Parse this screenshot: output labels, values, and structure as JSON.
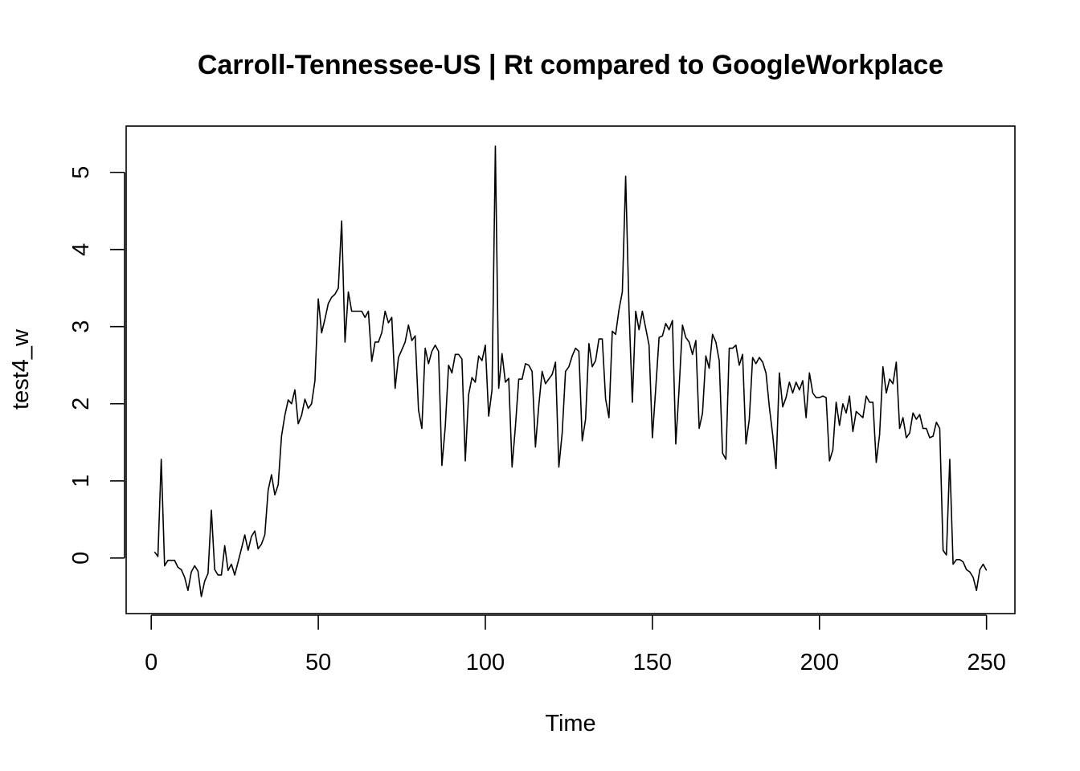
{
  "chart_data": {
    "type": "line",
    "title": "Carroll-Tennessee-US | Rt compared to GoogleWorkplace",
    "xlabel": "Time",
    "ylabel": "test4_w",
    "xlim": [
      -7.5,
      258.5
    ],
    "ylim": [
      -0.72,
      5.6
    ],
    "xticks": [
      0,
      50,
      100,
      150,
      200,
      250
    ],
    "yticks": [
      0,
      1,
      2,
      3,
      4,
      5
    ],
    "grid": false,
    "legend": "none",
    "line_color": "#000000",
    "series": [
      {
        "x_start": 1,
        "values": [
          0.08,
          0.02,
          1.28,
          -0.1,
          -0.03,
          -0.03,
          -0.03,
          -0.12,
          -0.15,
          -0.25,
          -0.42,
          -0.18,
          -0.1,
          -0.17,
          -0.5,
          -0.3,
          -0.2,
          0.62,
          -0.15,
          -0.22,
          -0.22,
          0.16,
          -0.16,
          -0.08,
          -0.22,
          -0.05,
          0.12,
          0.3,
          0.1,
          0.28,
          0.35,
          0.12,
          0.18,
          0.3,
          0.88,
          1.08,
          0.82,
          0.95,
          1.58,
          1.85,
          2.05,
          2.0,
          2.18,
          1.74,
          1.85,
          2.06,
          1.94,
          2.0,
          2.3,
          3.36,
          2.92,
          3.1,
          3.3,
          3.38,
          3.42,
          3.5,
          4.37,
          2.8,
          3.45,
          3.2,
          3.2,
          3.2,
          3.2,
          3.12,
          3.2,
          2.55,
          2.8,
          2.8,
          2.92,
          3.2,
          3.05,
          3.12,
          2.2,
          2.6,
          2.7,
          2.8,
          3.02,
          2.82,
          2.88,
          1.92,
          1.68,
          2.72,
          2.52,
          2.68,
          2.76,
          2.68,
          1.2,
          1.7,
          2.5,
          2.4,
          2.64,
          2.64,
          2.58,
          1.26,
          2.12,
          2.34,
          2.28,
          2.62,
          2.56,
          2.76,
          1.84,
          2.18,
          5.34,
          2.2,
          2.65,
          2.28,
          2.33,
          1.18,
          1.7,
          2.32,
          2.32,
          2.52,
          2.5,
          2.42,
          1.44,
          1.98,
          2.42,
          2.26,
          2.32,
          2.38,
          2.54,
          1.18,
          1.62,
          2.42,
          2.48,
          2.62,
          2.72,
          2.68,
          1.52,
          1.8,
          2.78,
          2.48,
          2.56,
          2.84,
          2.84,
          2.06,
          1.82,
          2.94,
          2.9,
          3.22,
          3.45,
          4.95,
          3.22,
          2.02,
          3.2,
          2.96,
          3.2,
          2.98,
          2.76,
          1.56,
          2.2,
          2.86,
          2.88,
          3.04,
          2.96,
          3.08,
          1.48,
          2.2,
          3.02,
          2.86,
          2.8,
          2.64,
          2.82,
          1.68,
          1.88,
          2.62,
          2.46,
          2.9,
          2.8,
          2.56,
          1.36,
          1.28,
          2.72,
          2.72,
          2.76,
          2.5,
          2.64,
          1.48,
          1.8,
          2.6,
          2.52,
          2.6,
          2.54,
          2.4,
          1.96,
          1.6,
          1.16,
          2.4,
          1.96,
          2.08,
          2.28,
          2.14,
          2.28,
          2.18,
          2.3,
          1.82,
          2.4,
          2.14,
          2.08,
          2.08,
          2.1,
          2.08,
          1.26,
          1.4,
          2.02,
          1.72,
          2.0,
          1.88,
          2.1,
          1.64,
          1.9,
          1.86,
          1.82,
          2.1,
          2.02,
          2.02,
          1.24,
          1.6,
          2.48,
          2.14,
          2.32,
          2.26,
          2.54,
          1.68,
          1.82,
          1.56,
          1.62,
          1.88,
          1.8,
          1.86,
          1.68,
          1.68,
          1.56,
          1.58,
          1.76,
          1.68,
          0.1,
          0.04,
          1.28,
          -0.08,
          -0.02,
          -0.02,
          -0.05,
          -0.15,
          -0.18,
          -0.25,
          -0.42,
          -0.15,
          -0.08,
          -0.16
        ]
      }
    ]
  }
}
